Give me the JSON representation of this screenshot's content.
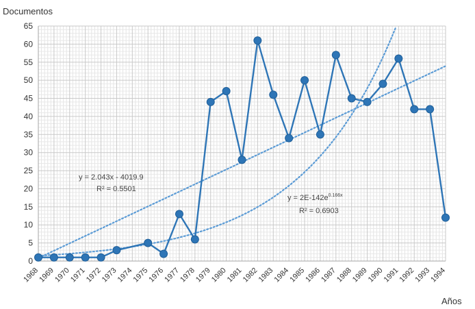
{
  "chart_data": {
    "type": "line",
    "ylabel": "Documentos",
    "xlabel": "Años",
    "ylim": [
      0,
      65
    ],
    "ytick_step": 5,
    "grid": "on (major and minor, light gray)",
    "categories": [
      "1968",
      "1969",
      "1970",
      "1971",
      "1972",
      "1973",
      "1974",
      "1975",
      "1976",
      "1977",
      "1978",
      "1979",
      "1980",
      "1981",
      "1982",
      "1983",
      "1984",
      "1985",
      "1986",
      "1987",
      "1988",
      "1989",
      "1990",
      "1991",
      "1992",
      "1993",
      "1994"
    ],
    "series": [
      {
        "values": [
          1,
          1,
          1,
          1,
          1,
          3,
          null,
          5,
          2,
          13,
          6,
          44,
          47,
          28,
          61,
          46,
          34,
          50,
          35,
          57,
          45,
          44,
          49,
          56,
          42,
          42,
          12
        ],
        "color": "#2e75b6",
        "style": "solid line with circle markers"
      }
    ],
    "trendlines": [
      {
        "kind": "linear",
        "color": "#5b9bd5",
        "style": "dotted",
        "slope": 2.043,
        "equation": "y = 2.043x - 4019.9",
        "r2": "R² = 0.5501"
      },
      {
        "kind": "exponential",
        "color": "#5b9bd5",
        "style": "dotted",
        "growth_rate": 0.166,
        "equation_main": "y = 2E-142e",
        "equation_exponent": "0.166x",
        "r2": "R² = 0.6903"
      }
    ]
  }
}
